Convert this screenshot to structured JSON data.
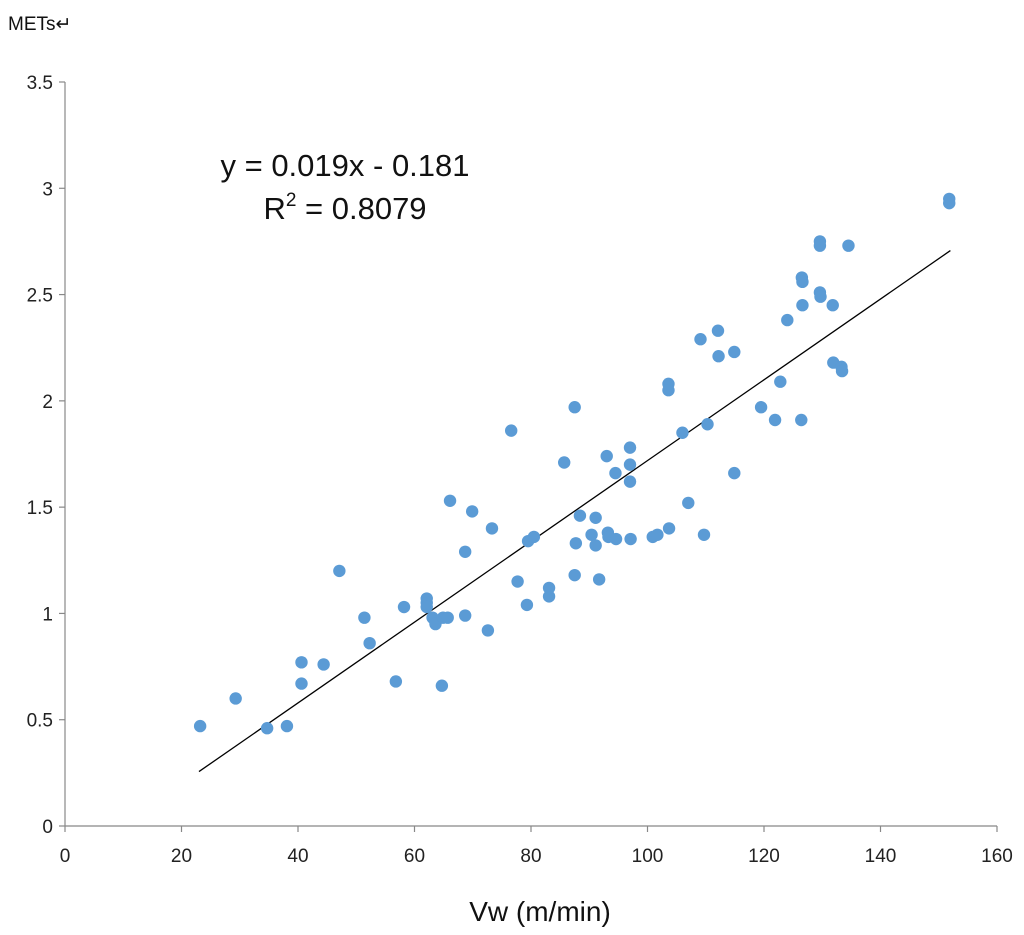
{
  "chart_data": {
    "type": "scatter",
    "ylabel": "METs↵",
    "xlabel": "Vw (m/min)",
    "xlim": [
      0,
      160
    ],
    "ylim": [
      0,
      3.5
    ],
    "x_ticks": [
      0,
      20,
      40,
      60,
      80,
      100,
      120,
      140,
      160
    ],
    "x_tick_labels": [
      "0",
      "20",
      "40",
      "60",
      "80",
      "100",
      "120",
      "140",
      "160"
    ],
    "y_ticks": [
      0,
      0.5,
      1,
      1.5,
      2,
      2.5,
      3,
      3.5
    ],
    "y_tick_labels": [
      "0",
      "0.5",
      "1",
      "1.5",
      "2",
      "2.5",
      "3",
      "3.5"
    ],
    "grid": false,
    "marker_color": "#5B9BD5",
    "trendline_color": "#000000",
    "trendline": {
      "slope": 0.019,
      "intercept": -0.181,
      "x_range": [
        23,
        152
      ],
      "equation_text": "y = 0.019x - 0.181",
      "r2_prefix": "R",
      "r2_exponent": "2",
      "r2_value_text": " = 0.8079"
    },
    "points": [
      [
        23.2,
        0.47
      ],
      [
        29.3,
        0.6
      ],
      [
        34.7,
        0.46
      ],
      [
        38.1,
        0.47
      ],
      [
        40.6,
        0.77
      ],
      [
        40.6,
        0.67
      ],
      [
        44.4,
        0.76
      ],
      [
        47.1,
        1.2
      ],
      [
        51.4,
        0.98
      ],
      [
        52.3,
        0.86
      ],
      [
        56.8,
        0.68
      ],
      [
        58.2,
        1.03
      ],
      [
        62.1,
        1.07
      ],
      [
        62.1,
        1.05
      ],
      [
        62.1,
        1.03
      ],
      [
        63.1,
        0.98
      ],
      [
        63.6,
        0.95
      ],
      [
        64.7,
        0.66
      ],
      [
        64.9,
        0.98
      ],
      [
        65.7,
        0.98
      ],
      [
        66.1,
        1.53
      ],
      [
        68.7,
        0.99
      ],
      [
        68.7,
        1.29
      ],
      [
        69.9,
        1.48
      ],
      [
        72.6,
        0.92
      ],
      [
        73.3,
        1.4
      ],
      [
        76.6,
        1.86
      ],
      [
        77.7,
        1.15
      ],
      [
        79.3,
        1.04
      ],
      [
        79.5,
        1.34
      ],
      [
        80.5,
        1.36
      ],
      [
        83.1,
        1.08
      ],
      [
        83.1,
        1.12
      ],
      [
        85.7,
        1.71
      ],
      [
        87.5,
        1.97
      ],
      [
        87.5,
        1.18
      ],
      [
        87.7,
        1.33
      ],
      [
        88.4,
        1.46
      ],
      [
        90.4,
        1.37
      ],
      [
        91.1,
        1.32
      ],
      [
        91.1,
        1.45
      ],
      [
        91.7,
        1.16
      ],
      [
        93.0,
        1.74
      ],
      [
        93.2,
        1.38
      ],
      [
        93.3,
        1.36
      ],
      [
        94.5,
        1.66
      ],
      [
        94.6,
        1.35
      ],
      [
        97.0,
        1.78
      ],
      [
        97.0,
        1.7
      ],
      [
        97.0,
        1.62
      ],
      [
        97.1,
        1.35
      ],
      [
        100.9,
        1.36
      ],
      [
        101.7,
        1.37
      ],
      [
        103.6,
        2.08
      ],
      [
        103.6,
        2.05
      ],
      [
        103.7,
        1.4
      ],
      [
        106.0,
        1.85
      ],
      [
        107.0,
        1.52
      ],
      [
        109.1,
        2.29
      ],
      [
        109.7,
        1.37
      ],
      [
        110.3,
        1.89
      ],
      [
        112.1,
        2.33
      ],
      [
        112.2,
        2.21
      ],
      [
        114.9,
        2.23
      ],
      [
        114.9,
        1.66
      ],
      [
        119.5,
        1.97
      ],
      [
        121.9,
        1.91
      ],
      [
        122.8,
        2.09
      ],
      [
        124.0,
        2.38
      ],
      [
        126.4,
        1.91
      ],
      [
        126.5,
        2.58
      ],
      [
        126.6,
        2.56
      ],
      [
        126.6,
        2.45
      ],
      [
        129.6,
        2.75
      ],
      [
        129.6,
        2.73
      ],
      [
        129.6,
        2.51
      ],
      [
        129.7,
        2.49
      ],
      [
        131.8,
        2.45
      ],
      [
        131.9,
        2.18
      ],
      [
        133.3,
        2.16
      ],
      [
        133.4,
        2.14
      ],
      [
        134.5,
        2.73
      ],
      [
        151.8,
        2.95
      ],
      [
        151.8,
        2.93
      ]
    ]
  }
}
